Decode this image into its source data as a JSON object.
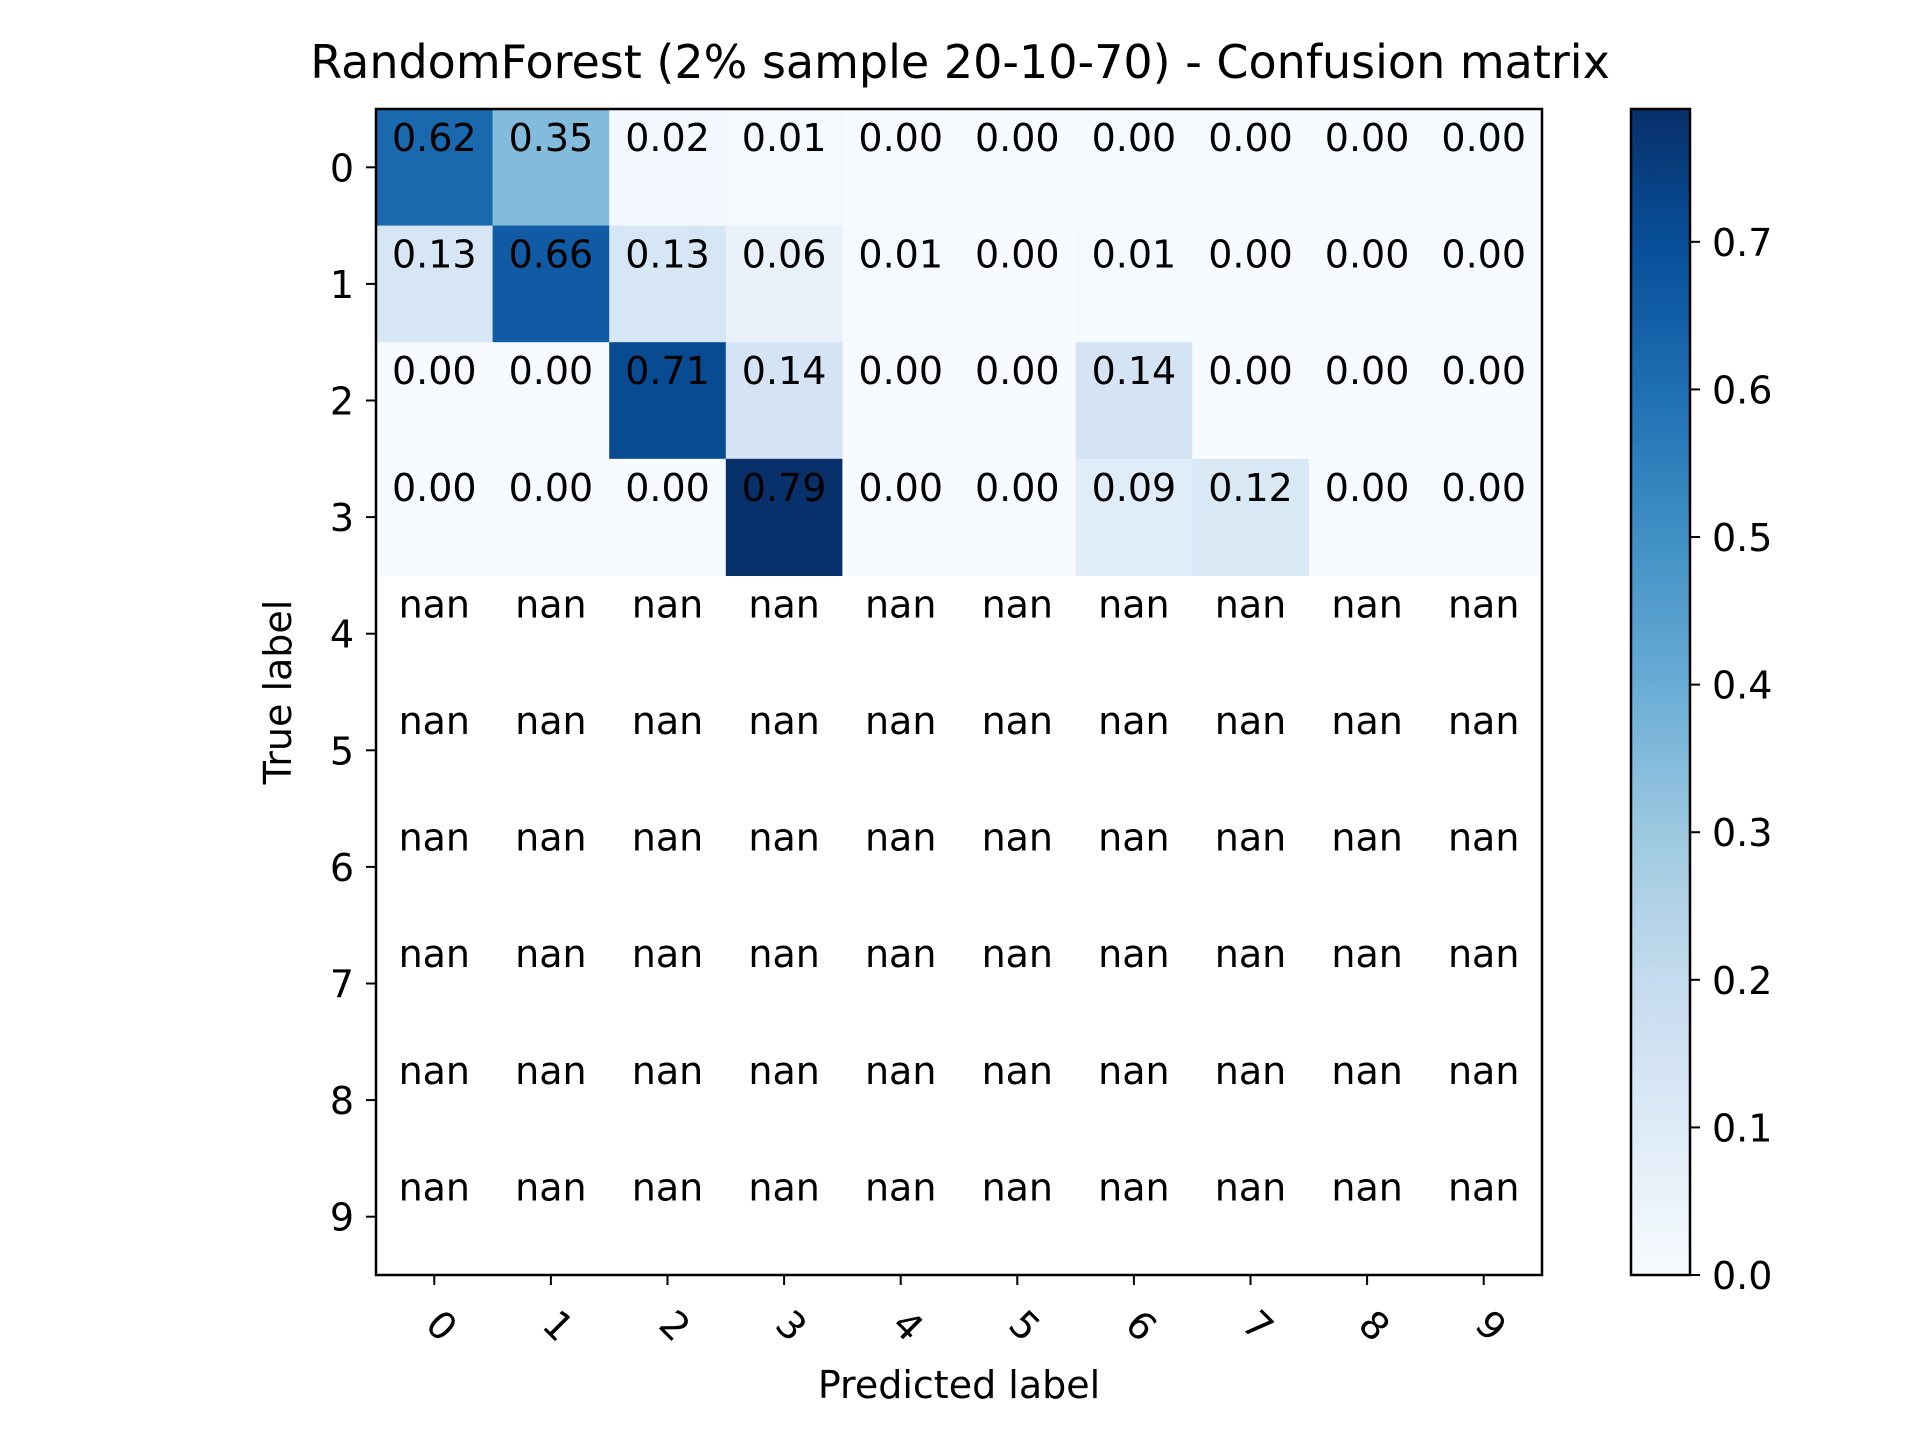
{
  "chart_data": {
    "type": "heatmap",
    "title": "RandomForest (2% sample 20-10-70) - Confusion matrix",
    "xlabel": "Predicted label",
    "ylabel": "True label",
    "x_categories": [
      "0",
      "1",
      "2",
      "3",
      "4",
      "5",
      "6",
      "7",
      "8",
      "9"
    ],
    "y_categories": [
      "0",
      "1",
      "2",
      "3",
      "4",
      "5",
      "6",
      "7",
      "8",
      "9"
    ],
    "values": [
      [
        0.62,
        0.35,
        0.02,
        0.01,
        0.0,
        0.0,
        0.0,
        0.0,
        0.0,
        0.0
      ],
      [
        0.13,
        0.66,
        0.13,
        0.06,
        0.01,
        0.0,
        0.01,
        0.0,
        0.0,
        0.0
      ],
      [
        0.0,
        0.0,
        0.71,
        0.14,
        0.0,
        0.0,
        0.14,
        0.0,
        0.0,
        0.0
      ],
      [
        0.0,
        0.0,
        0.0,
        0.79,
        0.0,
        0.0,
        0.09,
        0.12,
        0.0,
        0.0
      ],
      [
        null,
        null,
        null,
        null,
        null,
        null,
        null,
        null,
        null,
        null
      ],
      [
        null,
        null,
        null,
        null,
        null,
        null,
        null,
        null,
        null,
        null
      ],
      [
        null,
        null,
        null,
        null,
        null,
        null,
        null,
        null,
        null,
        null
      ],
      [
        null,
        null,
        null,
        null,
        null,
        null,
        null,
        null,
        null,
        null
      ],
      [
        null,
        null,
        null,
        null,
        null,
        null,
        null,
        null,
        null,
        null
      ],
      [
        null,
        null,
        null,
        null,
        null,
        null,
        null,
        null,
        null,
        null
      ]
    ],
    "missing_label": "nan",
    "value_format_decimals": 2,
    "colormap": "Blues",
    "colormap_stops": [
      "#f7fbff",
      "#deebf7",
      "#c6dbef",
      "#9ecae1",
      "#6baed6",
      "#4292c6",
      "#2171b5",
      "#08519c",
      "#08306b"
    ],
    "colorbar": {
      "range": [
        0.0,
        0.79
      ],
      "ticks": [
        "0.0",
        "0.1",
        "0.2",
        "0.3",
        "0.4",
        "0.5",
        "0.6",
        "0.7"
      ]
    },
    "x_tick_rotation_deg": 45
  }
}
